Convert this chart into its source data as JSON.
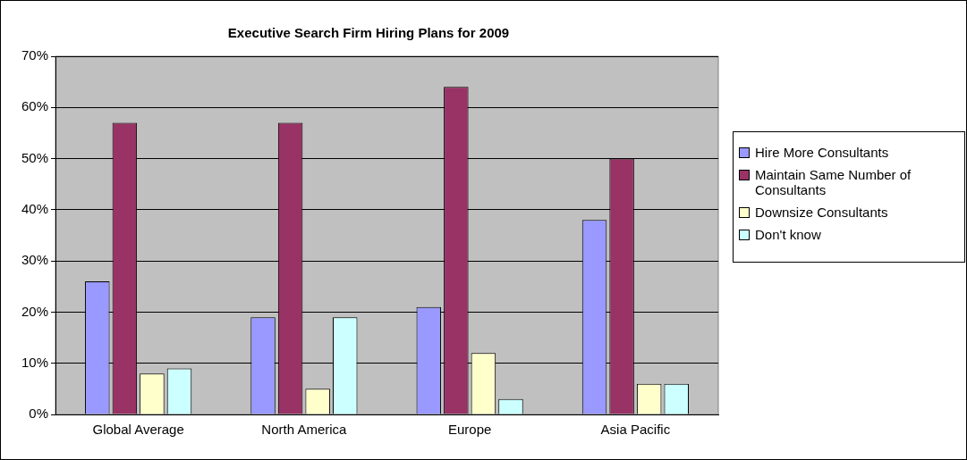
{
  "chart_data": {
    "type": "bar",
    "title": "Executive Search Firm Hiring Plans for 2009",
    "categories": [
      "Global Average",
      "North America",
      "Europe",
      "Asia Pacific"
    ],
    "series": [
      {
        "name": "Hire More Consultants",
        "color": "#9999ff",
        "values": [
          26,
          19,
          21,
          38
        ]
      },
      {
        "name": "Maintain Same Number of Consultants",
        "color": "#993366",
        "values": [
          57,
          57,
          64,
          50
        ]
      },
      {
        "name": "Downsize Consultants",
        "color": "#ffffcc",
        "values": [
          8,
          5,
          12,
          6
        ]
      },
      {
        "name": "Don't know",
        "color": "#ccffff",
        "values": [
          9,
          19,
          3,
          6
        ]
      }
    ],
    "ylim": [
      0,
      70
    ],
    "yticks": [
      {
        "value": 0,
        "label": "0%"
      },
      {
        "value": 10,
        "label": "10%"
      },
      {
        "value": 20,
        "label": "20%"
      },
      {
        "value": 30,
        "label": "30%"
      },
      {
        "value": 40,
        "label": "40%"
      },
      {
        "value": 50,
        "label": "50%"
      },
      {
        "value": 60,
        "label": "60%"
      },
      {
        "value": 70,
        "label": "70%"
      }
    ],
    "grid": "y",
    "legend": "right"
  }
}
